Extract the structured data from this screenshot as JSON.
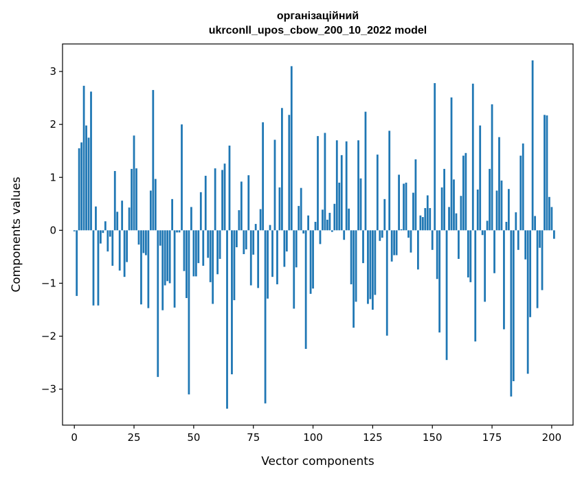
{
  "chart_data": {
    "type": "bar",
    "title_lines": [
      "організаційний",
      "ukrconll_upos_cbow_200_10_2022 model"
    ],
    "xlabel": "Vector components",
    "ylabel": "Components values",
    "xlim": [
      -4.95,
      208.95
    ],
    "ylim": [
      -3.68,
      3.52
    ],
    "xticks": [
      0,
      25,
      50,
      75,
      100,
      125,
      150,
      175,
      200
    ],
    "yticks": [
      -3,
      -2,
      -1,
      0,
      1,
      2,
      3
    ],
    "ytick_labels": [
      "−3",
      "−2",
      "−1",
      "0",
      "1",
      "2",
      "3"
    ],
    "bar_color": "#1f77b4",
    "values": [
      -0.02,
      -1.24,
      1.55,
      1.66,
      2.73,
      1.98,
      1.75,
      2.62,
      -1.42,
      0.45,
      -1.42,
      -0.25,
      -0.05,
      0.17,
      -0.4,
      -0.12,
      -0.67,
      1.12,
      0.35,
      -0.76,
      0.56,
      -0.88,
      -0.6,
      0.43,
      1.16,
      1.79,
      1.17,
      -0.27,
      -1.4,
      -0.43,
      -0.47,
      -1.47,
      0.75,
      2.65,
      0.97,
      -2.77,
      -0.29,
      -1.51,
      -1.04,
      -0.96,
      -1.0,
      0.59,
      -1.46,
      -0.04,
      -0.04,
      2.0,
      -0.77,
      -1.28,
      -3.1,
      0.44,
      -0.87,
      -0.87,
      -0.62,
      0.72,
      -0.67,
      1.03,
      -0.52,
      -0.98,
      -1.39,
      1.17,
      -0.83,
      -0.54,
      1.14,
      1.26,
      -3.37,
      1.6,
      -2.72,
      -1.32,
      -0.32,
      0.38,
      0.92,
      -0.45,
      -0.36,
      1.04,
      -1.04,
      -0.46,
      0.12,
      -1.09,
      0.4,
      2.04,
      -3.27,
      -1.29,
      0.1,
      -0.88,
      1.71,
      -1.02,
      0.81,
      2.31,
      -0.69,
      -0.4,
      2.18,
      3.1,
      -1.48,
      -0.7,
      0.46,
      0.8,
      -0.06,
      -2.24,
      0.28,
      -1.2,
      -1.1,
      0.16,
      1.78,
      -0.26,
      0.39,
      1.84,
      0.2,
      0.33,
      -0.03,
      0.5,
      1.7,
      0.9,
      1.42,
      -0.18,
      1.68,
      0.41,
      -1.02,
      -1.84,
      -1.35,
      1.7,
      0.98,
      -0.62,
      2.24,
      -1.39,
      -1.3,
      -1.5,
      -1.22,
      1.43,
      -0.2,
      -0.14,
      0.59,
      -1.99,
      1.88,
      -0.59,
      -0.47,
      -0.47,
      1.05,
      0.02,
      0.88,
      0.9,
      -0.14,
      -0.42,
      0.71,
      1.34,
      -0.74,
      0.28,
      0.25,
      0.42,
      0.66,
      0.42,
      -0.37,
      2.78,
      -0.92,
      -1.93,
      0.81,
      1.16,
      -2.45,
      0.44,
      2.51,
      0.96,
      0.32,
      -0.54,
      0.65,
      1.41,
      1.46,
      -0.89,
      -0.98,
      2.77,
      -2.1,
      0.77,
      1.98,
      -0.09,
      -1.35,
      0.18,
      1.16,
      2.38,
      -0.81,
      0.75,
      1.76,
      0.94,
      -1.87,
      0.16,
      0.78,
      -3.14,
      -2.85,
      0.34,
      -0.37,
      1.41,
      1.64,
      -0.55,
      -2.71,
      -1.64,
      3.21,
      0.27,
      -1.47,
      -0.33,
      -1.13,
      2.18,
      2.17,
      0.63,
      0.44,
      -0.16
    ]
  }
}
